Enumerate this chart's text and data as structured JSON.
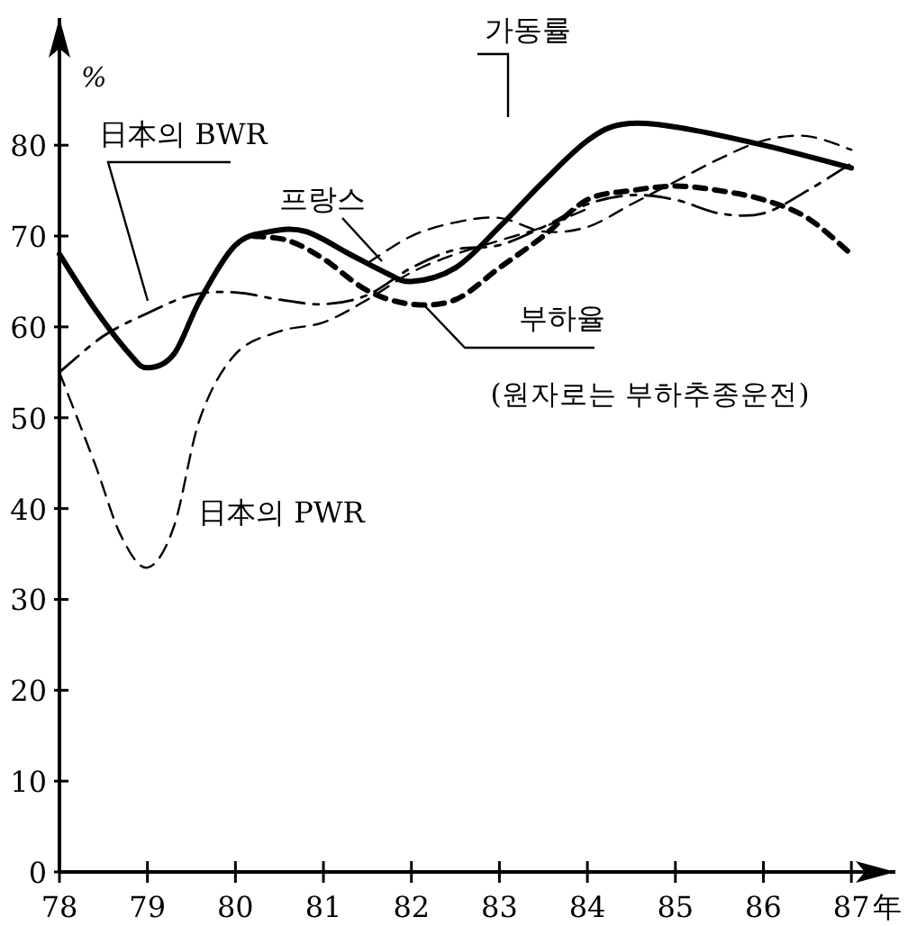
{
  "chart_data": {
    "type": "line",
    "ylabel": "%",
    "xlabel": "年",
    "xlim": [
      78,
      87.5
    ],
    "ylim": [
      0,
      94
    ],
    "xticks": [
      78,
      79,
      80,
      81,
      82,
      83,
      84,
      85,
      86,
      87
    ],
    "yticks": [
      0,
      10,
      20,
      30,
      40,
      50,
      60,
      70,
      80
    ],
    "grid": false,
    "marker": "none",
    "series": [
      {
        "name": "가동률",
        "color": "#000000",
        "line_style": "solid",
        "x": [
          78,
          78.4,
          78.8,
          79,
          79.3,
          79.6,
          80,
          80.4,
          80.8,
          81.3,
          81.7,
          82,
          82.5,
          83,
          83.5,
          84,
          84.4,
          85,
          86,
          87
        ],
        "values": [
          68,
          62,
          57,
          55.5,
          57,
          63,
          69,
          70.5,
          70.5,
          68,
          66,
          65,
          66.5,
          71,
          76,
          80.5,
          82.3,
          82,
          80,
          77.5
        ]
      },
      {
        "name": "부하율",
        "color": "#000000",
        "line_style": "dashed",
        "x": [
          80.2,
          80.6,
          81,
          81.5,
          82,
          82.5,
          83,
          83.5,
          84,
          84.5,
          85,
          85.5,
          86,
          86.5,
          87
        ],
        "values": [
          70,
          69.5,
          67.5,
          64,
          62.5,
          63,
          66.5,
          70,
          74,
          75,
          75.5,
          75,
          74,
          72,
          68
        ]
      },
      {
        "name": "日本의 BWR",
        "color": "#000000",
        "line_style": "dashed",
        "x": [
          78,
          78.5,
          79,
          79.5,
          80,
          80.5,
          81,
          81.5,
          82,
          82.5,
          83,
          83.5,
          84,
          84.5,
          85,
          85.5,
          86,
          86.5,
          87
        ],
        "values": [
          55,
          59,
          61.5,
          63.5,
          63.8,
          63,
          62.5,
          63.5,
          66.5,
          68.5,
          69,
          71,
          73.5,
          74.5,
          74,
          72.5,
          72.5,
          75,
          78
        ]
      },
      {
        "name": "프랑스",
        "color": "#000000",
        "line_style": "dashed",
        "x": [
          81.5,
          82,
          82.5,
          83,
          83.5,
          84,
          84.5,
          85,
          85.5,
          86,
          86.5,
          87
        ],
        "values": [
          67,
          70,
          71.5,
          72,
          70.5,
          71,
          73.5,
          76,
          78.5,
          80.5,
          81,
          79.5
        ]
      },
      {
        "name": "日本의 PWR",
        "color": "#000000",
        "line_style": "dashed",
        "x": [
          78,
          78.4,
          78.7,
          79,
          79.3,
          79.6,
          80,
          80.5,
          81,
          81.5,
          82,
          82.5,
          83,
          83.5,
          84
        ],
        "values": [
          55,
          45,
          37,
          33.5,
          38,
          50,
          57,
          59.5,
          60.5,
          63,
          66,
          68,
          69.5,
          71,
          73
        ]
      }
    ],
    "annotations": [
      {
        "text": "(원자로는 부하추종운전)",
        "x": 82.1,
        "y": 62.5
      }
    ]
  }
}
